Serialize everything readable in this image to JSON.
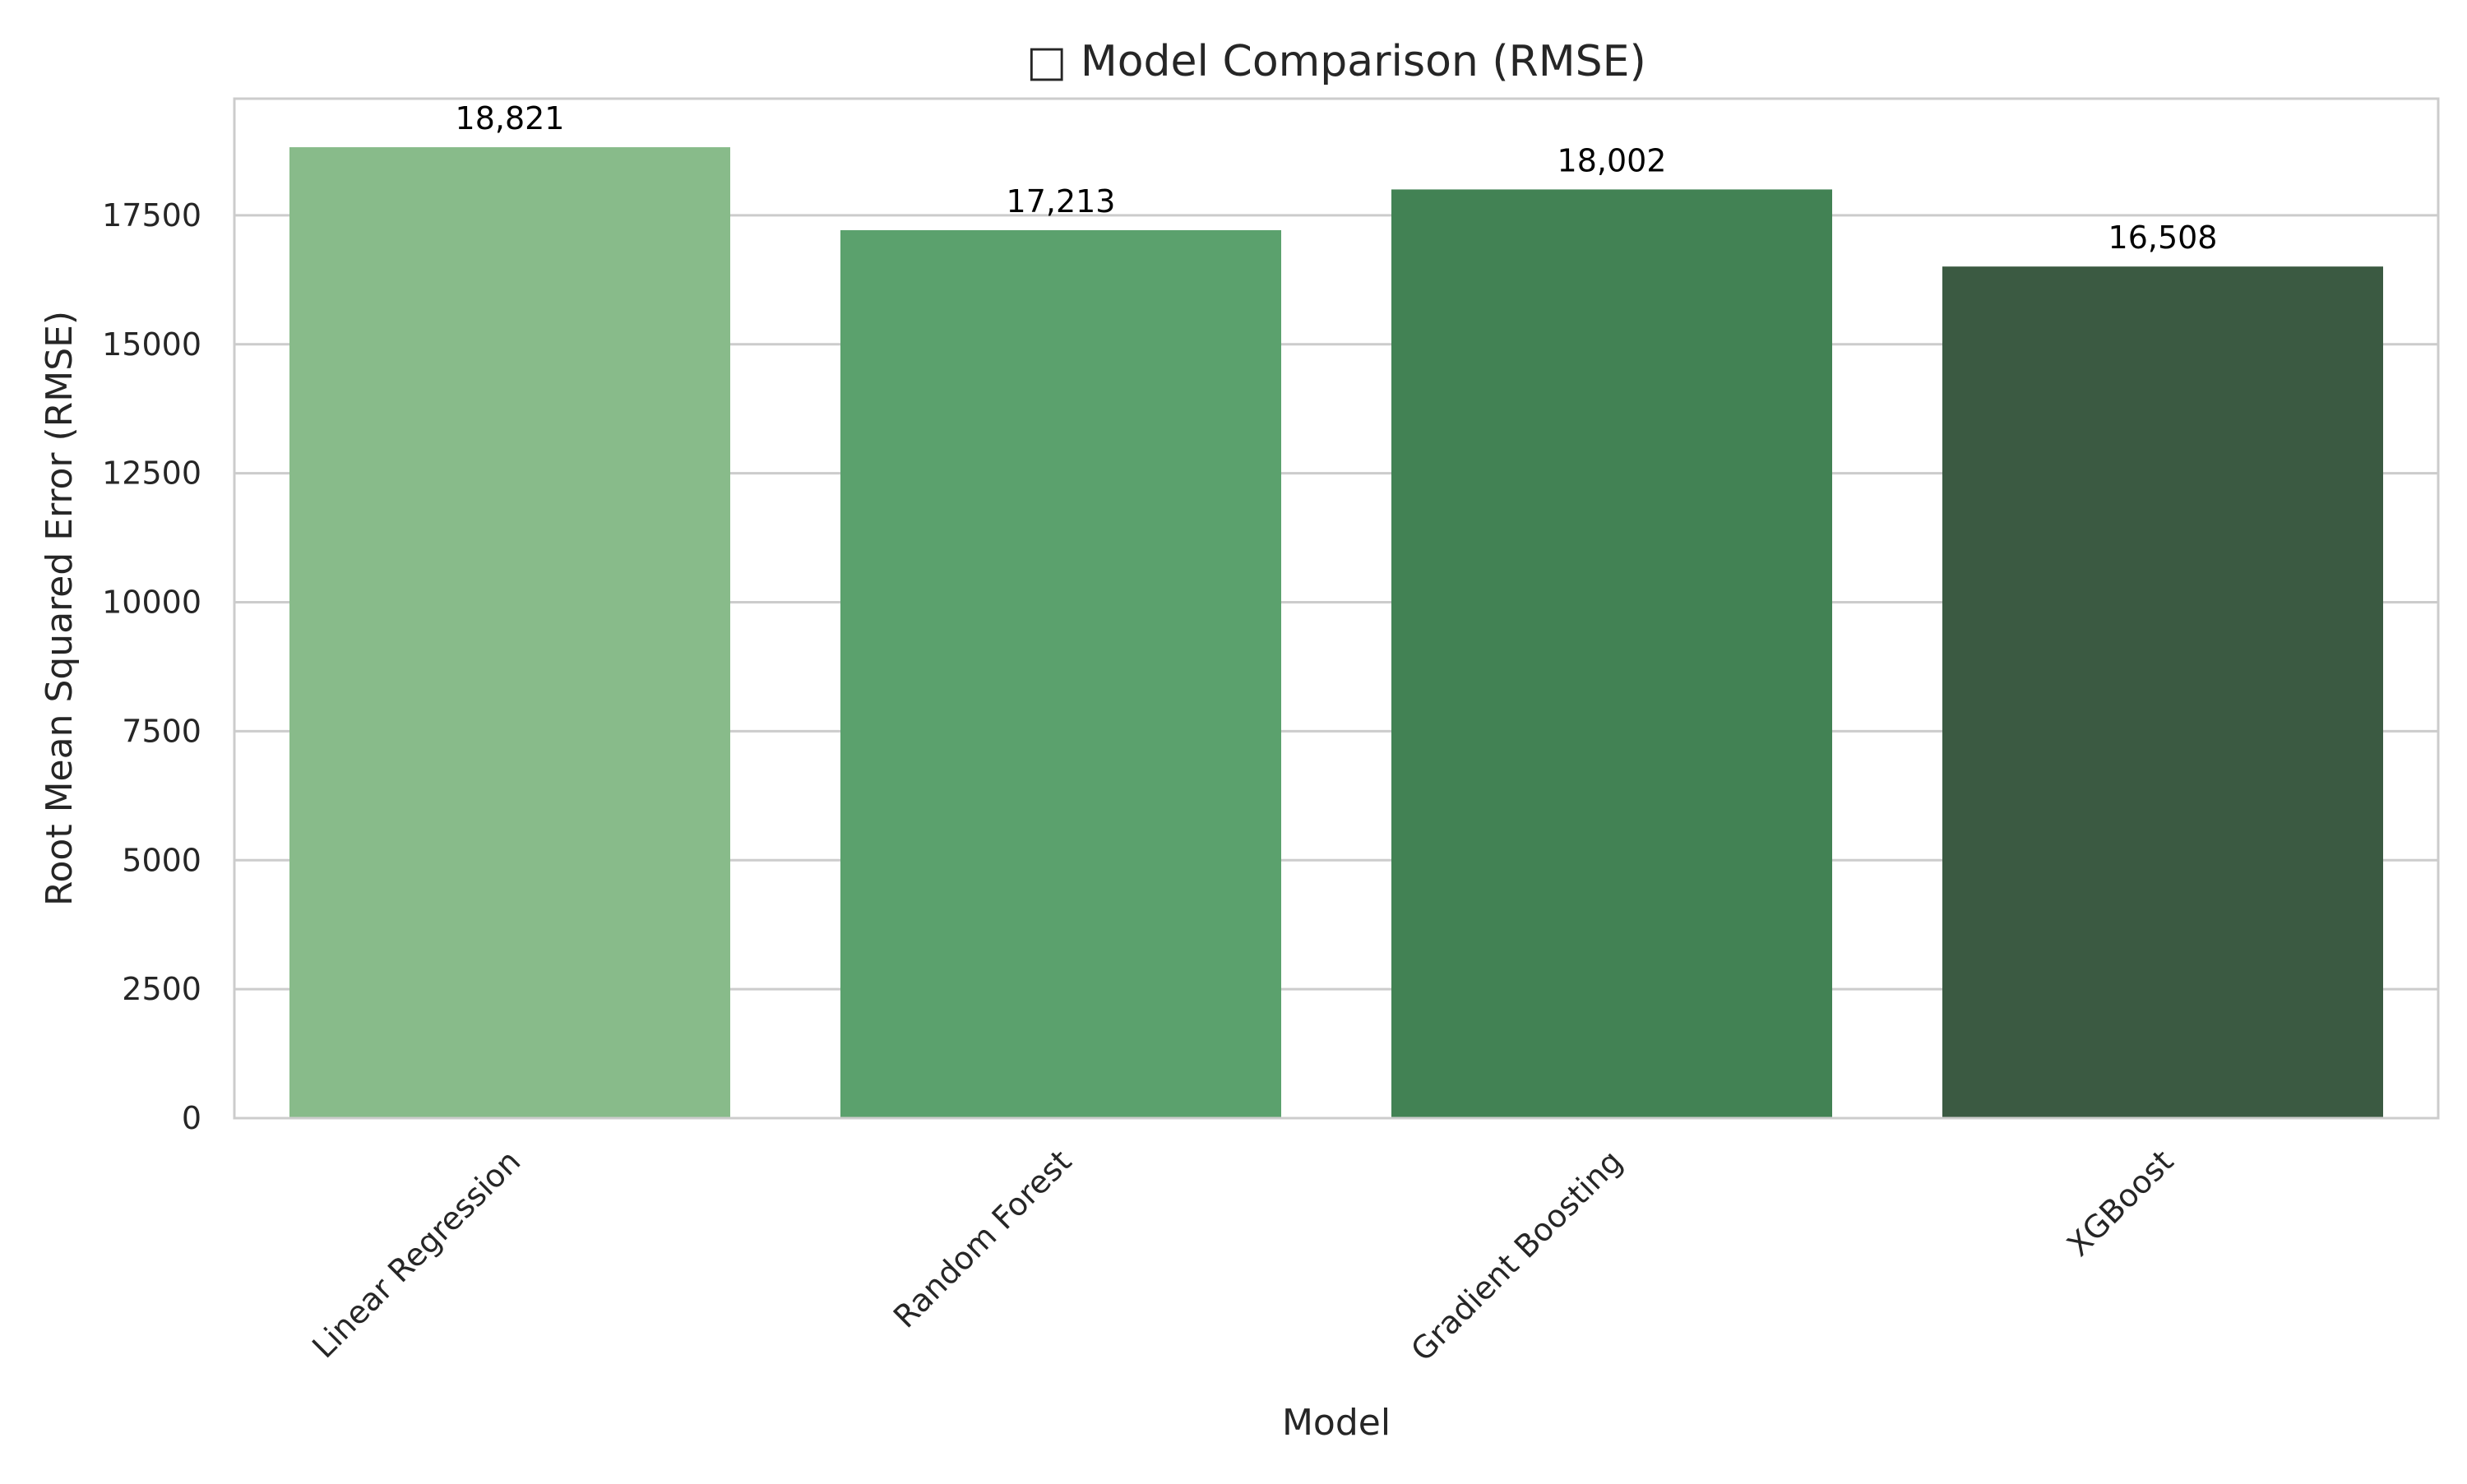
{
  "chart_data": {
    "type": "bar",
    "title": "□ Model Comparison (RMSE)",
    "xlabel": "Model",
    "ylabel": "Root Mean Squared Error (RMSE)",
    "categories": [
      "Linear Regression",
      "Random Forest",
      "Gradient Boosting",
      "XGBoost"
    ],
    "values": [
      18821,
      17213,
      18002,
      16508
    ],
    "value_labels": [
      "18,821",
      "17,213",
      "18,002",
      "16,508"
    ],
    "colors": [
      "#88bb8a",
      "#5ba16d",
      "#428254",
      "#3b5a42"
    ],
    "ylim": [
      0,
      19762
    ],
    "yticks": [
      0,
      2500,
      5000,
      7500,
      10000,
      12500,
      15000,
      17500
    ],
    "grid": true,
    "legend": "none"
  }
}
